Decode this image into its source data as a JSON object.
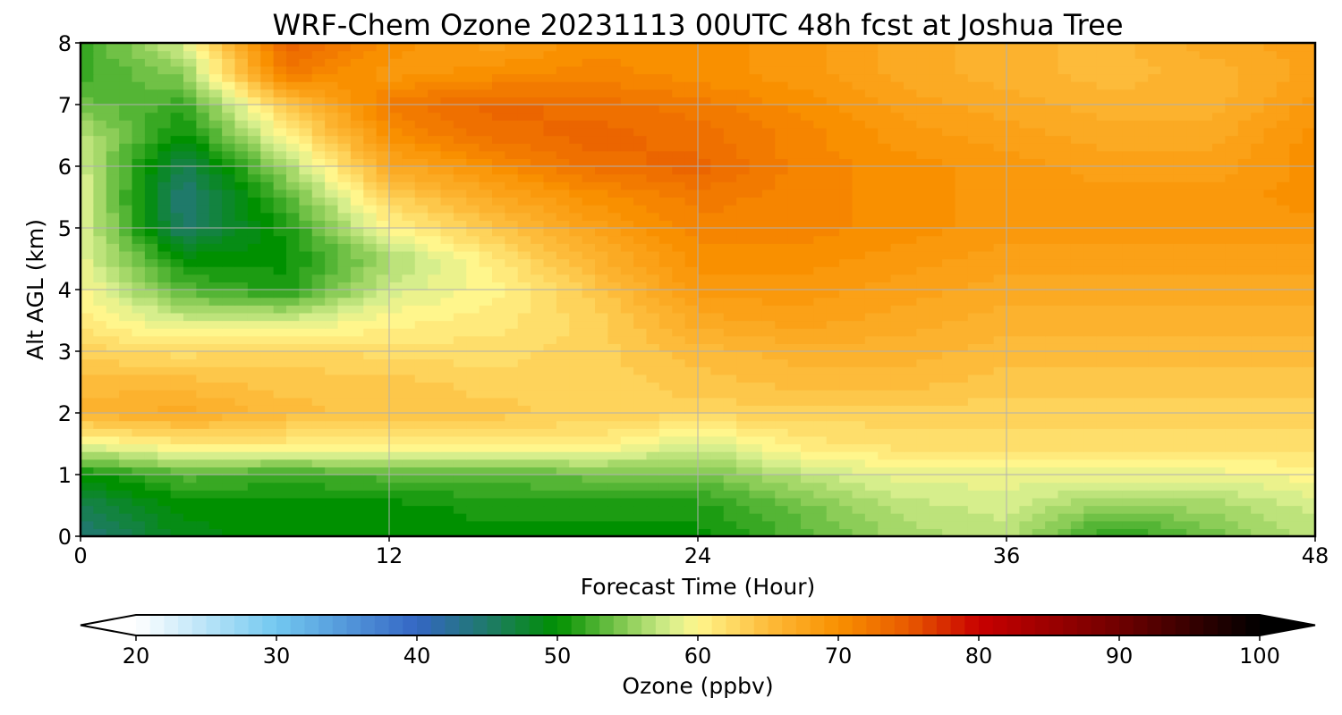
{
  "chart_data": {
    "type": "heatmap",
    "title": "WRF-Chem Ozone  20231113 00UTC 48h fcst at Joshua Tree",
    "xlabel": "Forecast Time (Hour)",
    "ylabel": "Alt AGL (km)",
    "xlim": [
      0,
      48
    ],
    "ylim": [
      0,
      8
    ],
    "x_ticks": [
      0,
      12,
      24,
      36,
      48
    ],
    "y_ticks": [
      0,
      1,
      2,
      3,
      4,
      5,
      6,
      7,
      8
    ],
    "grid": true,
    "x": [
      0,
      4,
      8,
      12,
      16,
      20,
      24,
      28,
      32,
      36,
      40,
      44,
      48
    ],
    "y": [
      0,
      0.5,
      1,
      1.5,
      2,
      2.5,
      3,
      3.5,
      4,
      4.5,
      5,
      5.5,
      6,
      6.5,
      7,
      7.5,
      8
    ],
    "z_unit": "ppbv",
    "z": [
      [
        44,
        49,
        50,
        50,
        50,
        50,
        50,
        53,
        56,
        57,
        51,
        54,
        57
      ],
      [
        46,
        50,
        50,
        50,
        51,
        51,
        51,
        54,
        57,
        58,
        55,
        56,
        58
      ],
      [
        50,
        53,
        52,
        53,
        53,
        54,
        54,
        57,
        59,
        59,
        59,
        59,
        60
      ],
      [
        59,
        61,
        61,
        61,
        61,
        61,
        58,
        61,
        62,
        62,
        62,
        62,
        62
      ],
      [
        66,
        67,
        65,
        64,
        64,
        63,
        63,
        63,
        63,
        63,
        63,
        63,
        63
      ],
      [
        65,
        65,
        64,
        64,
        63,
        63,
        64,
        65,
        65,
        64,
        64,
        64,
        64
      ],
      [
        63,
        62,
        63,
        62,
        62,
        63,
        65,
        66,
        66,
        65,
        65,
        65,
        65
      ],
      [
        61,
        58,
        58,
        60,
        61,
        63,
        67,
        68,
        67,
        66,
        66,
        66,
        66
      ],
      [
        60,
        53,
        51,
        58,
        60,
        64,
        69,
        69,
        68,
        67,
        67,
        67,
        67
      ],
      [
        59,
        50,
        50,
        56,
        61,
        66,
        70,
        70,
        69,
        68,
        68,
        68,
        68
      ],
      [
        59,
        45,
        51,
        60,
        64,
        68,
        71,
        71,
        70,
        69,
        69,
        69,
        69
      ],
      [
        59,
        44,
        53,
        63,
        67,
        70,
        72,
        71,
        70,
        69,
        69,
        69,
        70
      ],
      [
        58,
        46,
        56,
        67,
        70,
        73,
        74,
        71,
        70,
        69,
        68,
        68,
        70
      ],
      [
        57,
        50,
        60,
        70,
        73,
        74,
        73,
        71,
        69,
        68,
        67,
        67,
        70
      ],
      [
        54,
        52,
        64,
        72,
        74,
        73,
        72,
        70,
        68,
        67,
        66,
        66,
        69
      ],
      [
        52,
        55,
        72,
        69,
        70,
        71,
        70,
        69,
        67,
        66,
        65,
        66,
        68
      ],
      [
        52,
        58,
        74,
        70,
        68,
        70,
        70,
        69,
        67,
        66,
        65,
        67,
        68
      ]
    ],
    "colorbar": {
      "label": "Ozone  (ppbv)",
      "min": 20,
      "max": 100,
      "ticks": [
        20,
        30,
        40,
        50,
        60,
        70,
        80,
        90,
        100
      ],
      "extend": "both",
      "color_stops": [
        {
          "value": 20,
          "color": "#ffffff"
        },
        {
          "value": 30,
          "color": "#72c8f0"
        },
        {
          "value": 40,
          "color": "#3466c4"
        },
        {
          "value": 45,
          "color": "#1f7a6a"
        },
        {
          "value": 50,
          "color": "#009000"
        },
        {
          "value": 55,
          "color": "#8ccd58"
        },
        {
          "value": 58,
          "color": "#d6ee8c"
        },
        {
          "value": 60,
          "color": "#fff68c"
        },
        {
          "value": 65,
          "color": "#fdbb3a"
        },
        {
          "value": 70,
          "color": "#f99000"
        },
        {
          "value": 75,
          "color": "#e85a00"
        },
        {
          "value": 80,
          "color": "#c80000"
        },
        {
          "value": 90,
          "color": "#700000"
        },
        {
          "value": 100,
          "color": "#000000"
        }
      ]
    }
  }
}
